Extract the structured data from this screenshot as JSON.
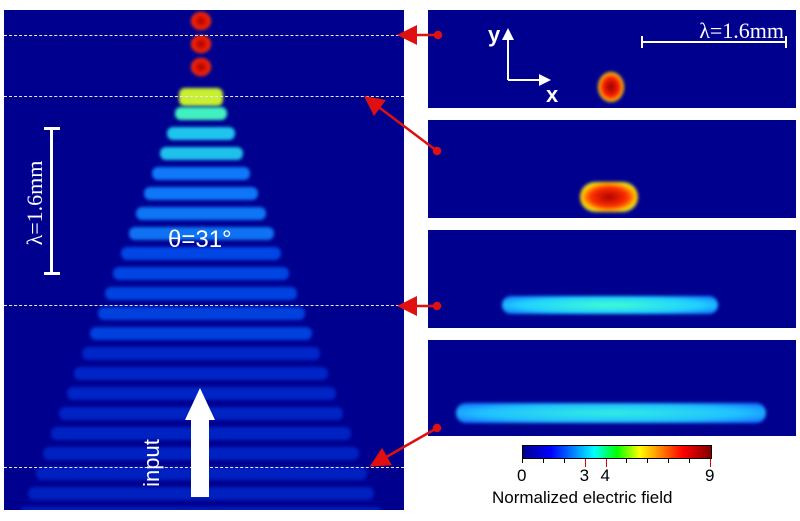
{
  "left_panel": {
    "angle_label": "θ=31°",
    "scale_label": "λ=1.6mm",
    "input_label": "input"
  },
  "right_panels": {
    "scale_label": "λ=1.6mm",
    "axis_y": "y",
    "axis_x": "x"
  },
  "colorbar": {
    "ticks": [
      "0",
      "3",
      "4",
      "9"
    ],
    "tick_values": [
      0,
      3,
      4,
      9
    ],
    "range": [
      0,
      9
    ],
    "label": "Normalized electric field",
    "colors": [
      "#00008f",
      "#0000ff",
      "#00ffff",
      "#ffff00",
      "#ff0000",
      "#800000"
    ]
  },
  "colors": {
    "background": "#00008f",
    "arrow": "#e01010",
    "dash": "#e8e8f0"
  }
}
